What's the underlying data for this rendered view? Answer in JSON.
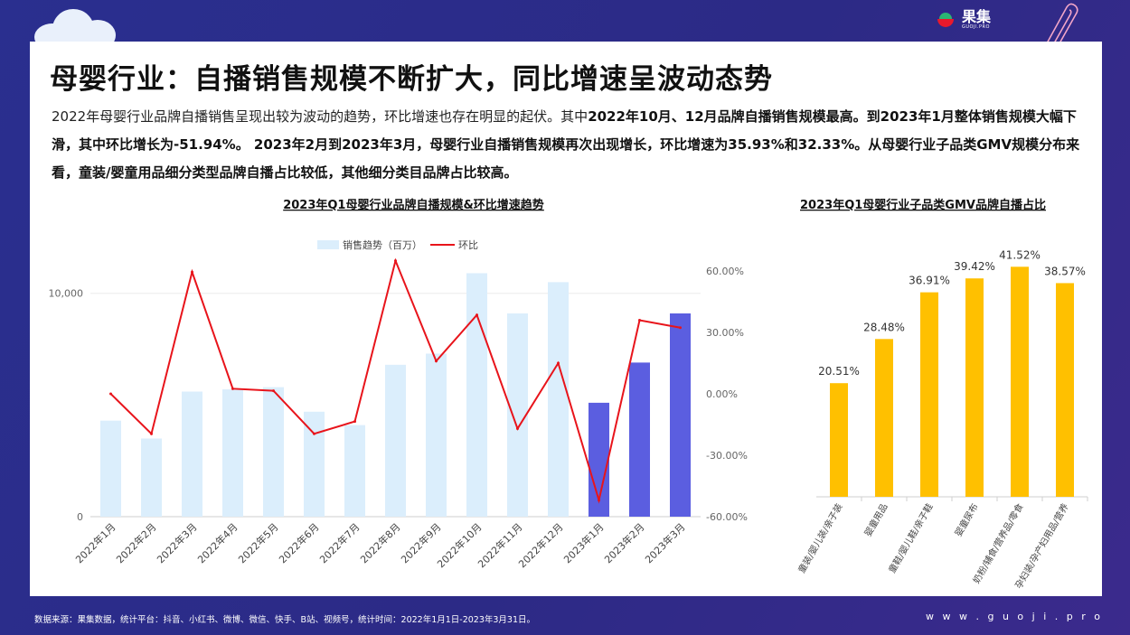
{
  "brand": {
    "name": "果集",
    "sub": "GUOJI.PRO"
  },
  "title": "母婴行业：自播销售规模不断扩大，同比增速呈波动态势",
  "paragraph": {
    "p1": "2022年母婴行业品牌自播销售呈现出较为波动的趋势，环比增速也存在明显的起伏。其中",
    "b1": "2022年10月、12月品牌自播销售规模最高。到2023年1月整体销售规模大幅下滑，其中环比增长为-51.94%。 2023年2月到2023年3月，母婴行业自播销售规模再次出现增长，环比增速为35.93%和32.33%。从母婴行业子品类GMV规模分布来看，童装/婴童用品细分类型品牌自播占比较低，其他细分类目品牌占比较高。"
  },
  "footer": {
    "source": "数据来源：果集数据，统计平台：抖音、小红书、微博、微信、快手、B站、视频号，统计时间：2022年1月1日-2023年3月31日。",
    "url": "w w w . g u o j i . p r o"
  },
  "chart_data": [
    {
      "type": "bar",
      "title": "2023年Q1母婴行业品牌自播规模&环比增速趋势",
      "categories": [
        "2022年1月",
        "2022年2月",
        "2022年3月",
        "2022年4月",
        "2022年5月",
        "2022年6月",
        "2022年7月",
        "2022年8月",
        "2022年9月",
        "2022年10月",
        "2022年11月",
        "2022年12月",
        "2023年1月",
        "2023年2月",
        "2023年3月"
      ],
      "series": [
        {
          "name": "销售趋势（百万）",
          "kind": "bar",
          "axis": "left",
          "values": [
            4300,
            3500,
            5600,
            5700,
            5800,
            4700,
            4100,
            6800,
            7300,
            10900,
            9100,
            10500,
            5100,
            6900,
            9100
          ],
          "highlight_from_index": 12,
          "color": "#dbeefc",
          "highlight_color": "#5b5ee0"
        },
        {
          "name": "环比",
          "kind": "line",
          "axis": "right",
          "values": [
            0.0,
            -19.5,
            59.5,
            2.5,
            1.5,
            -19.5,
            -13.5,
            65.0,
            16.0,
            38.5,
            -17.0,
            15.0,
            -51.94,
            35.93,
            32.33
          ],
          "unit": "%",
          "color": "#e8141b"
        }
      ],
      "y_left": {
        "ticks": [
          0,
          10000
        ],
        "tick_labels": [
          "0",
          "10,000"
        ],
        "range": [
          0,
          11000
        ]
      },
      "y_right": {
        "ticks": [
          -60,
          -30,
          0,
          30,
          60
        ],
        "tick_labels": [
          "-60.00%",
          "-30.00%",
          "0.00%",
          "30.00%",
          "60.00%"
        ],
        "range": [
          -60,
          60
        ]
      },
      "legend": "top-center",
      "grid": true
    },
    {
      "type": "bar",
      "title": "2023年Q1母婴行业子品类GMV品牌自播占比",
      "categories": [
        "童装/婴儿装/亲子装",
        "婴童用品",
        "童鞋/婴儿鞋/亲子鞋",
        "婴童尿布",
        "奶粉/辅食/营养品/零食",
        "孕妇装/孕产妇用品/营养"
      ],
      "values": [
        20.51,
        28.48,
        36.91,
        39.42,
        41.52,
        38.57
      ],
      "value_labels": [
        "20.51%",
        "28.48%",
        "36.91%",
        "39.42%",
        "41.52%",
        "38.57%"
      ],
      "unit": "%",
      "ylim": [
        0,
        45
      ],
      "color": "#ffc000",
      "grid": false
    }
  ]
}
